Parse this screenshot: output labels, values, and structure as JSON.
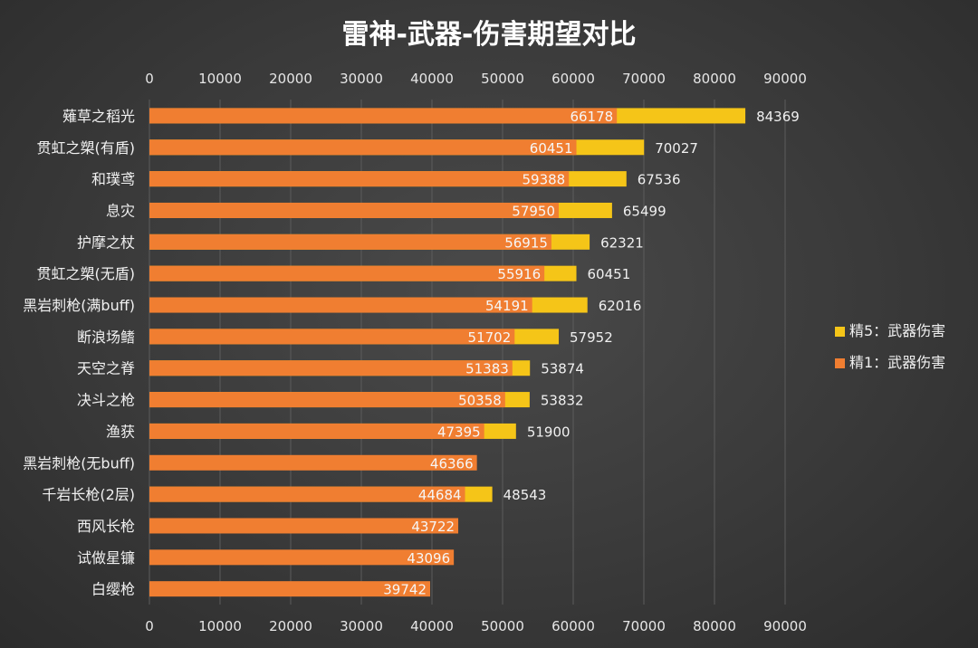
{
  "chart_data": {
    "type": "bar",
    "orientation": "horizontal",
    "title": "雷神-武器-伤害期望对比",
    "xlim": [
      0,
      90000
    ],
    "x_ticks": [
      "0",
      "10000",
      "20000",
      "30000",
      "40000",
      "50000",
      "60000",
      "70000",
      "80000",
      "90000"
    ],
    "grid": true,
    "legend_position": "right",
    "categories": [
      "薙草之稻光",
      "贯虹之槊(有盾)",
      "和璞鸢",
      "息灾",
      "护摩之杖",
      "贯虹之槊(无盾)",
      "黑岩刺枪(满buff)",
      "断浪场鳍",
      "天空之脊",
      "决斗之枪",
      "渔获",
      "黑岩刺枪(无buff)",
      "千岩长枪(2层)",
      "西风长枪",
      "试做星镰",
      "白缨枪"
    ],
    "series": [
      {
        "name": "精5：武器伤害",
        "color": "#f5c518",
        "values": [
          84369,
          70027,
          67536,
          65499,
          62321,
          60451,
          62016,
          57952,
          53874,
          53832,
          51900,
          null,
          48543,
          null,
          null,
          null
        ]
      },
      {
        "name": "精1：武器伤害",
        "color": "#f07e31",
        "values": [
          66178,
          60451,
          59388,
          57950,
          56915,
          55916,
          54191,
          51702,
          51383,
          50358,
          47395,
          46366,
          44684,
          43722,
          43096,
          39742
        ]
      }
    ]
  }
}
